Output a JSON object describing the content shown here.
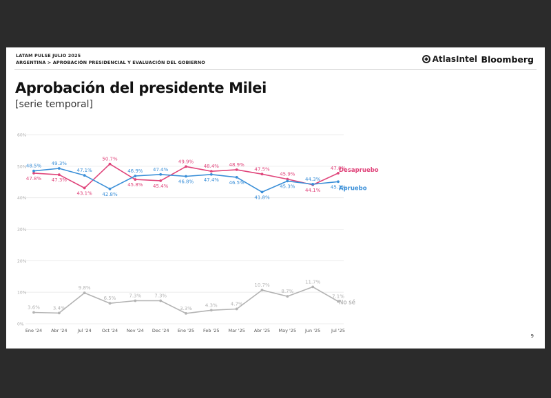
{
  "header": {
    "kicker_1": "LATAM PULSE JULIO 2025",
    "kicker_2": "ARGENTINA > APROBACIÓN PRESIDENCIAL Y EVALUACIÓN DEL GOBIERNO",
    "logo_atlas": "AtlasIntel",
    "logo_bloomberg": "Bloomberg"
  },
  "page_number": "9",
  "chart_data": {
    "type": "line",
    "title": "Aprobación del presidente Milei",
    "subtitle": "[serie temporal]",
    "categories": [
      "Ene '24",
      "Abr '24",
      "Jul '24",
      "Oct '24",
      "Nov '24",
      "Dec '24",
      "Ene '25",
      "Feb '25",
      "Mar '25",
      "Abr '25",
      "May '25",
      "Jun '25",
      "Jul '25"
    ],
    "y_ticks": [
      "0%",
      "10%",
      "20%",
      "30%",
      "40%",
      "50%",
      "60%"
    ],
    "ylim": [
      0,
      60
    ],
    "grid": true,
    "legend": "right-end labels",
    "series": [
      {
        "name": "Desapruebo",
        "color": "#e0457b",
        "values": [
          47.8,
          47.3,
          43.1,
          50.7,
          45.8,
          45.4,
          49.9,
          48.4,
          48.9,
          47.5,
          45.9,
          44.1,
          47.8
        ],
        "labels": [
          "47.8%",
          "47.3%",
          "43.1%",
          "50.7%",
          "45.8%",
          "45.4%",
          "49.9%",
          "48.4%",
          "48.9%",
          "47.5%",
          "45.9%",
          "44.1%",
          "47.8%"
        ]
      },
      {
        "name": "Apruebo",
        "color": "#3a8fd8",
        "values": [
          48.5,
          49.3,
          47.1,
          42.8,
          46.9,
          47.4,
          46.8,
          47.4,
          46.5,
          41.8,
          45.3,
          44.3,
          45.1
        ],
        "labels": [
          "48.5%",
          "49.3%",
          "47.1%",
          "42.8%",
          "46.9%",
          "47.4%",
          "46.8%",
          "47.4%",
          "46.5%",
          "41.8%",
          "45.3%",
          "44.3%",
          "45.1%"
        ]
      },
      {
        "name": "No sé",
        "color": "#b3b3b3",
        "values": [
          3.6,
          3.4,
          9.8,
          6.5,
          7.3,
          7.3,
          3.3,
          4.3,
          4.7,
          10.7,
          8.7,
          11.7,
          7.1
        ],
        "labels": [
          "3.6%",
          "3.4%",
          "9.8%",
          "6.5%",
          "7.3%",
          "7.3%",
          "3.3%",
          "4.3%",
          "4.7%",
          "10.7%",
          "8.7%",
          "11.7%",
          "7.1%"
        ]
      }
    ]
  }
}
